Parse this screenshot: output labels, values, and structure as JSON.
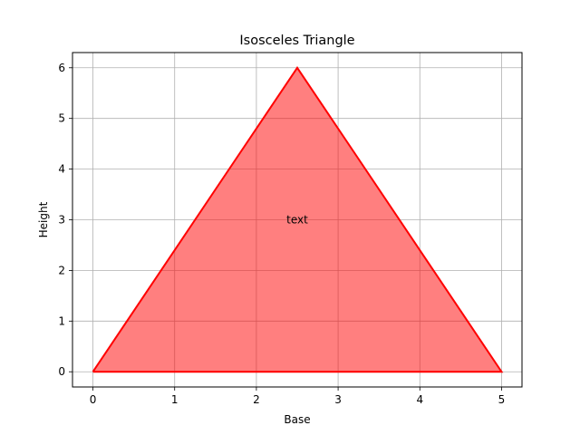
{
  "chart_data": {
    "type": "area",
    "title": "Isosceles Triangle",
    "xlabel": "Base",
    "ylabel": "Height",
    "xlim": [
      -0.25,
      5.25
    ],
    "ylim": [
      -0.3,
      6.3
    ],
    "xticks": [
      0,
      1,
      2,
      3,
      4,
      5
    ],
    "yticks": [
      0,
      1,
      2,
      3,
      4,
      5,
      6
    ],
    "grid": true,
    "series": [
      {
        "x": [
          0,
          2.5,
          5,
          0
        ],
        "y": [
          0,
          6,
          0,
          0
        ],
        "line_color": "#ff0000",
        "fill_color": "#ff0000",
        "fill_opacity": 0.5
      }
    ],
    "annotations": [
      {
        "x": 2.5,
        "y": 3,
        "text": "text"
      }
    ]
  }
}
